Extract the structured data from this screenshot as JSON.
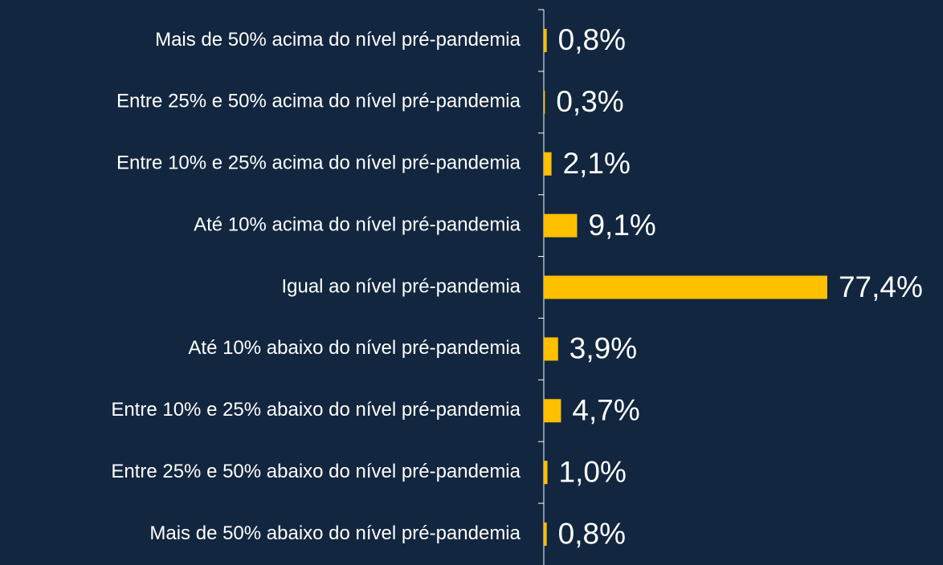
{
  "chart_data": {
    "type": "bar",
    "orientation": "horizontal",
    "color": "#ffc000",
    "categories": [
      "Mais de 50% acima do nível pré-pandemia",
      "Entre 25% e 50% acima do nível pré-pandemia",
      "Entre 10% e 25% acima do nível pré-pandemia",
      "Até 10% acima do nível pré-pandemia",
      "Igual ao nível pré-pandemia",
      "Até 10% abaixo do nível pré-pandemia",
      "Entre 10% e 25% abaixo do nível pré-pandemia",
      "Entre 25% e 50% abaixo do nível pré-pandemia",
      "Mais de 50% abaixo do nível pré-pandemia"
    ],
    "values": [
      0.8,
      0.3,
      2.1,
      9.1,
      77.4,
      3.9,
      4.7,
      1.0,
      0.8
    ],
    "value_labels": [
      "0,8%",
      "0,3%",
      "2,1%",
      "9,1%",
      "77,4%",
      "3,9%",
      "4,7%",
      "1,0%",
      "0,8%"
    ]
  }
}
